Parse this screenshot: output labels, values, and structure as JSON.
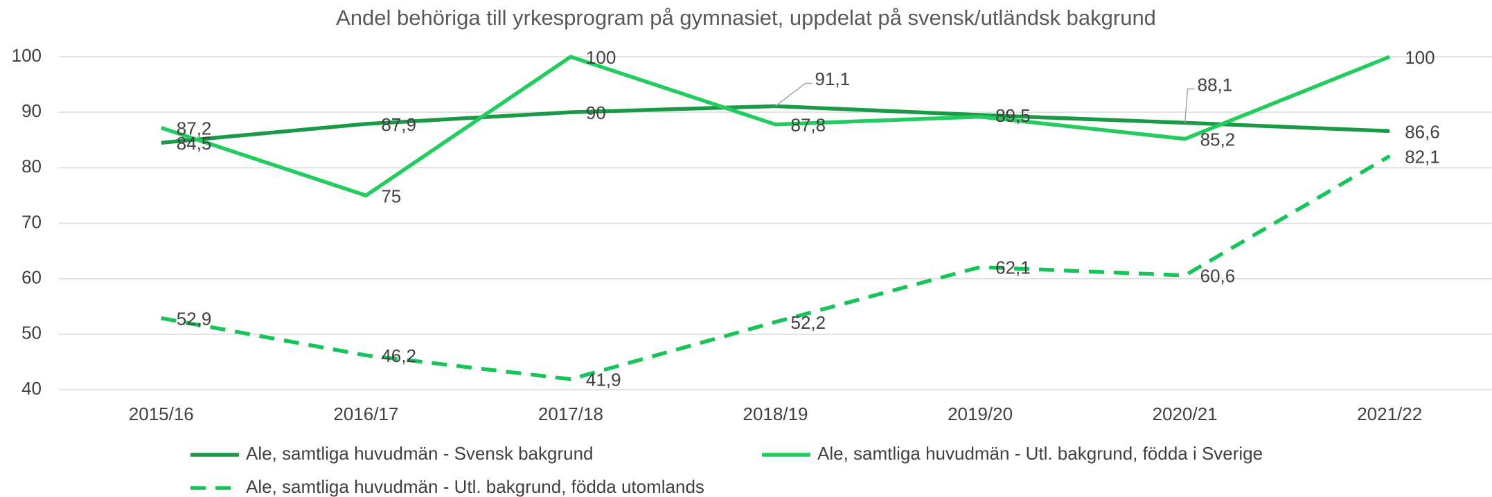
{
  "chart_data": {
    "type": "line",
    "title": "Andel behöriga till yrkesprogram på gymnasiet, uppdelat på svensk/utländsk bakgrund",
    "categories": [
      "2015/16",
      "2016/17",
      "2017/18",
      "2018/19",
      "2019/20",
      "2020/21",
      "2021/22"
    ],
    "series": [
      {
        "name": "Ale, samtliga huvudmän - Svensk bakgrund",
        "color": "#1a9a46",
        "dash": false,
        "values": [
          84.5,
          87.9,
          90,
          91.1,
          89.5,
          88.1,
          86.6
        ],
        "value_labels": [
          "84,5",
          "87,9",
          "90",
          "91,1",
          "89,5",
          "88,1",
          "86,6"
        ]
      },
      {
        "name": "Ale, samtliga huvudmän - Utl. bakgrund, födda i Sverige",
        "color": "#22cc5e",
        "dash": false,
        "values": [
          87.2,
          75,
          100,
          87.8,
          89.2,
          85.2,
          100
        ],
        "value_labels": [
          "87,2",
          "75",
          "100",
          "87,8",
          null,
          "85,2",
          "100"
        ]
      },
      {
        "name": "Ale, samtliga huvudmän - Utl. bakgrund, födda utomlands",
        "color": "#17c45a",
        "dash": true,
        "values": [
          52.9,
          46.2,
          41.9,
          52.2,
          62.1,
          60.6,
          82.1
        ],
        "value_labels": [
          "52,9",
          "46,2",
          "41,9",
          "52,2",
          "62,1",
          "60,6",
          "82,1"
        ]
      }
    ],
    "ylim": [
      40,
      100
    ],
    "yticks": [
      40,
      50,
      60,
      70,
      80,
      90,
      100
    ],
    "grid": true,
    "legend": "bottom"
  }
}
